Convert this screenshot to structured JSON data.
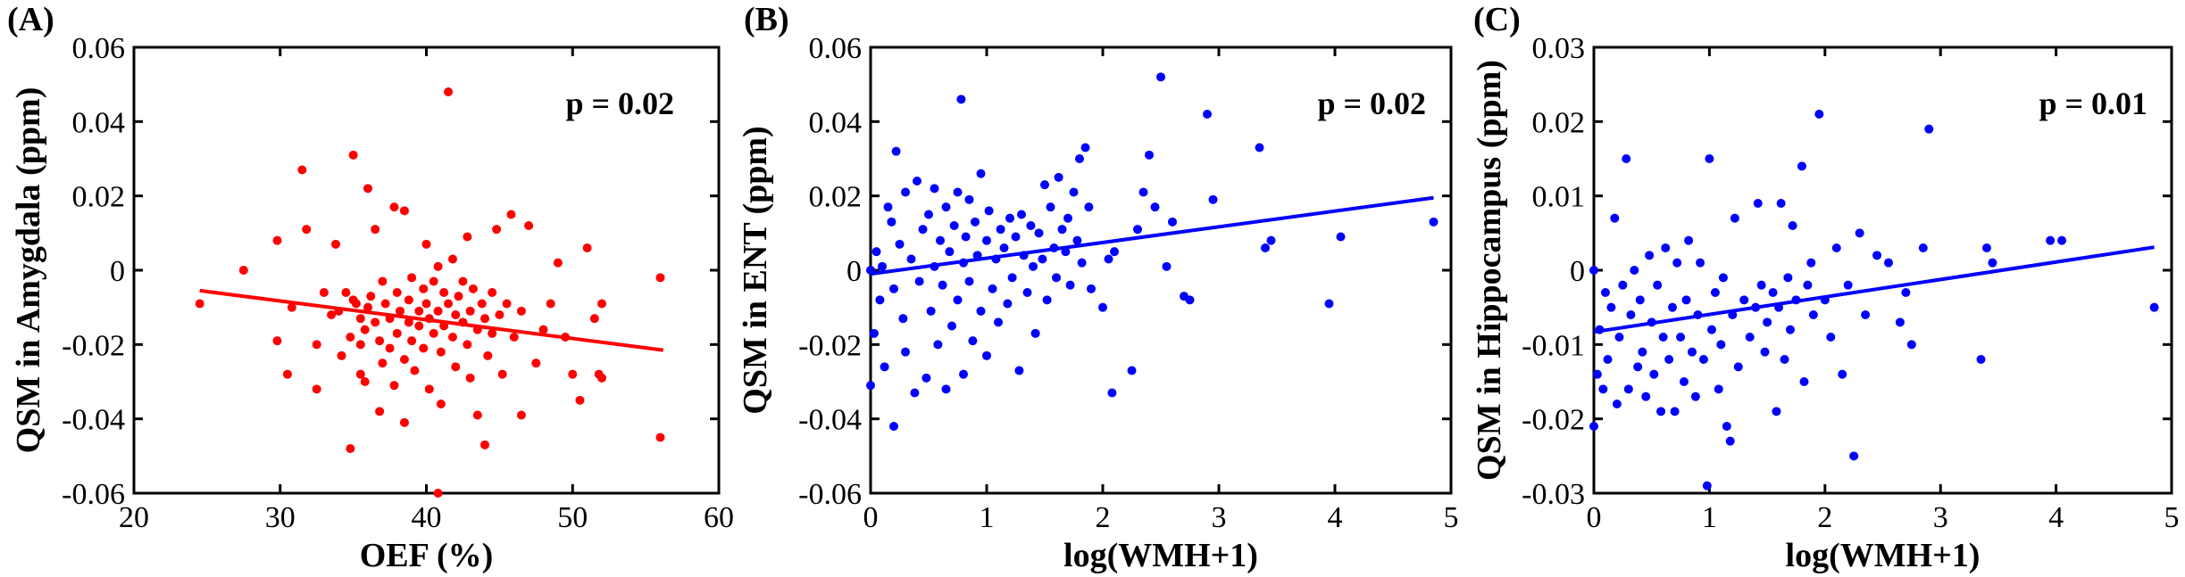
{
  "chart_data": [
    {
      "type": "scatter",
      "panel_label": "(A)",
      "xlabel": "OEF (%)",
      "ylabel": "QSM in Amygdala (ppm)",
      "xlim": [
        20,
        60
      ],
      "ylim": [
        -0.06,
        0.06
      ],
      "xticks": [
        "20",
        "30",
        "40",
        "50",
        "60"
      ],
      "yticks": [
        "-0.06",
        "-0.04",
        "-0.02",
        "0",
        "0.02",
        "0.04",
        "0.06"
      ],
      "annotation": "p = 0.02",
      "point_color": "#ff0000",
      "line_color": "#ff0000",
      "fit_line": {
        "x": [
          24.5,
          56.2
        ],
        "y": [
          -0.0055,
          -0.0215
        ]
      },
      "points": [
        [
          24.5,
          -0.009
        ],
        [
          27.5,
          0.0
        ],
        [
          29.8,
          -0.019
        ],
        [
          30.5,
          -0.028
        ],
        [
          30.8,
          -0.01
        ],
        [
          31.5,
          0.027
        ],
        [
          31.8,
          0.011
        ],
        [
          32.5,
          -0.02
        ],
        [
          32.5,
          -0.032
        ],
        [
          33.0,
          -0.006
        ],
        [
          33.5,
          -0.012
        ],
        [
          33.8,
          0.007
        ],
        [
          34.0,
          -0.011
        ],
        [
          34.2,
          -0.023
        ],
        [
          34.5,
          -0.006
        ],
        [
          34.8,
          -0.018
        ],
        [
          35.0,
          -0.008
        ],
        [
          35.0,
          0.031
        ],
        [
          35.2,
          -0.009
        ],
        [
          35.5,
          -0.013
        ],
        [
          35.5,
          -0.02
        ],
        [
          35.5,
          -0.028
        ],
        [
          35.8,
          -0.016
        ],
        [
          35.8,
          -0.03
        ],
        [
          36.0,
          -0.01
        ],
        [
          36.0,
          0.022
        ],
        [
          36.2,
          -0.007
        ],
        [
          36.5,
          -0.014
        ],
        [
          36.5,
          0.011
        ],
        [
          36.8,
          -0.019
        ],
        [
          36.8,
          -0.038
        ],
        [
          37.0,
          -0.025
        ],
        [
          37.0,
          -0.003
        ],
        [
          37.2,
          -0.009
        ],
        [
          37.5,
          -0.013
        ],
        [
          37.5,
          -0.021
        ],
        [
          37.8,
          0.017
        ],
        [
          37.8,
          -0.031
        ],
        [
          38.0,
          -0.006
        ],
        [
          38.0,
          -0.017
        ],
        [
          38.2,
          -0.011
        ],
        [
          38.5,
          -0.024
        ],
        [
          38.5,
          0.016
        ],
        [
          38.5,
          -0.041
        ],
        [
          38.8,
          -0.014
        ],
        [
          38.8,
          -0.008
        ],
        [
          39.0,
          -0.002
        ],
        [
          39.0,
          -0.019
        ],
        [
          39.2,
          -0.027
        ],
        [
          39.5,
          -0.011
        ],
        [
          39.5,
          -0.015
        ],
        [
          39.8,
          -0.005
        ],
        [
          39.8,
          -0.021
        ],
        [
          40.0,
          -0.009
        ],
        [
          40.0,
          0.007
        ],
        [
          40.2,
          -0.013
        ],
        [
          40.2,
          -0.032
        ],
        [
          40.5,
          -0.017
        ],
        [
          40.5,
          -0.003
        ],
        [
          40.8,
          0.001
        ],
        [
          40.8,
          -0.011
        ],
        [
          41.0,
          -0.022
        ],
        [
          41.0,
          -0.036
        ],
        [
          41.2,
          -0.006
        ],
        [
          41.2,
          -0.015
        ],
        [
          41.5,
          0.048
        ],
        [
          41.5,
          -0.009
        ],
        [
          41.8,
          -0.018
        ],
        [
          41.8,
          0.003
        ],
        [
          42.0,
          -0.012
        ],
        [
          42.0,
          -0.026
        ],
        [
          42.2,
          -0.007
        ],
        [
          42.5,
          -0.014
        ],
        [
          42.5,
          -0.003
        ],
        [
          42.8,
          0.009
        ],
        [
          42.8,
          -0.02
        ],
        [
          43.0,
          -0.011
        ],
        [
          43.0,
          -0.029
        ],
        [
          43.2,
          -0.005
        ],
        [
          43.5,
          -0.016
        ],
        [
          43.5,
          -0.039
        ],
        [
          43.8,
          -0.009
        ],
        [
          44.0,
          -0.013
        ],
        [
          44.0,
          -0.047
        ],
        [
          44.2,
          -0.023
        ],
        [
          44.5,
          -0.006
        ],
        [
          44.5,
          -0.017
        ],
        [
          44.8,
          0.011
        ],
        [
          45.0,
          -0.012
        ],
        [
          45.2,
          -0.028
        ],
        [
          45.5,
          -0.009
        ],
        [
          45.8,
          0.015
        ],
        [
          46.0,
          -0.018
        ],
        [
          46.5,
          -0.011
        ],
        [
          46.5,
          -0.039
        ],
        [
          47.0,
          0.012
        ],
        [
          47.5,
          -0.025
        ],
        [
          48.0,
          -0.016
        ],
        [
          48.5,
          -0.009
        ],
        [
          49.0,
          0.002
        ],
        [
          49.5,
          -0.018
        ],
        [
          50.0,
          -0.028
        ],
        [
          50.5,
          -0.035
        ],
        [
          51.0,
          0.006
        ],
        [
          51.5,
          -0.013
        ],
        [
          51.8,
          -0.028
        ],
        [
          52.0,
          -0.009
        ],
        [
          52.0,
          -0.029
        ],
        [
          56.0,
          -0.002
        ],
        [
          56.0,
          -0.045
        ],
        [
          40.8,
          -0.06
        ],
        [
          34.8,
          -0.048
        ],
        [
          29.8,
          0.008
        ]
      ]
    },
    {
      "type": "scatter",
      "panel_label": "(B)",
      "xlabel": "log(WMH+1)",
      "ylabel": "QSM in ENT (ppm)",
      "xlim": [
        0,
        5
      ],
      "ylim": [
        -0.06,
        0.06
      ],
      "xticks": [
        "0",
        "1",
        "2",
        "3",
        "4",
        "5"
      ],
      "yticks": [
        "-0.06",
        "-0.04",
        "-0.02",
        "0",
        "0.02",
        "0.04",
        "0.06"
      ],
      "annotation": "p = 0.02",
      "point_color": "#0000ff",
      "line_color": "#0000ff",
      "fit_line": {
        "x": [
          0.0,
          4.85
        ],
        "y": [
          -0.001,
          0.0195
        ]
      },
      "points": [
        [
          0.0,
          0.0
        ],
        [
          0.0,
          -0.031
        ],
        [
          0.03,
          -0.017
        ],
        [
          0.05,
          0.005
        ],
        [
          0.08,
          -0.008
        ],
        [
          0.1,
          0.001
        ],
        [
          0.12,
          -0.026
        ],
        [
          0.15,
          0.017
        ],
        [
          0.18,
          0.013
        ],
        [
          0.2,
          -0.005
        ],
        [
          0.2,
          -0.042
        ],
        [
          0.22,
          0.032
        ],
        [
          0.25,
          0.007
        ],
        [
          0.28,
          -0.013
        ],
        [
          0.3,
          0.021
        ],
        [
          0.3,
          -0.022
        ],
        [
          0.35,
          0.003
        ],
        [
          0.38,
          -0.033
        ],
        [
          0.4,
          0.024
        ],
        [
          0.42,
          -0.003
        ],
        [
          0.45,
          0.011
        ],
        [
          0.48,
          -0.029
        ],
        [
          0.5,
          0.015
        ],
        [
          0.52,
          -0.011
        ],
        [
          0.55,
          0.001
        ],
        [
          0.55,
          0.022
        ],
        [
          0.58,
          -0.02
        ],
        [
          0.6,
          0.008
        ],
        [
          0.62,
          -0.004
        ],
        [
          0.65,
          0.017
        ],
        [
          0.65,
          -0.032
        ],
        [
          0.68,
          0.005
        ],
        [
          0.7,
          -0.015
        ],
        [
          0.72,
          0.012
        ],
        [
          0.75,
          0.021
        ],
        [
          0.75,
          -0.008
        ],
        [
          0.78,
          0.046
        ],
        [
          0.8,
          0.002
        ],
        [
          0.8,
          -0.028
        ],
        [
          0.82,
          0.009
        ],
        [
          0.85,
          -0.003
        ],
        [
          0.85,
          0.019
        ],
        [
          0.88,
          -0.019
        ],
        [
          0.9,
          0.013
        ],
        [
          0.92,
          0.004
        ],
        [
          0.95,
          -0.011
        ],
        [
          0.95,
          0.026
        ],
        [
          1.0,
          0.008
        ],
        [
          1.0,
          -0.023
        ],
        [
          1.02,
          0.016
        ],
        [
          1.05,
          -0.005
        ],
        [
          1.08,
          0.003
        ],
        [
          1.1,
          -0.014
        ],
        [
          1.12,
          0.011
        ],
        [
          1.15,
          0.006
        ],
        [
          1.18,
          -0.009
        ],
        [
          1.2,
          0.014
        ],
        [
          1.22,
          -0.002
        ],
        [
          1.25,
          0.009
        ],
        [
          1.28,
          -0.027
        ],
        [
          1.3,
          0.015
        ],
        [
          1.32,
          0.004
        ],
        [
          1.35,
          -0.006
        ],
        [
          1.38,
          0.012
        ],
        [
          1.4,
          0.001
        ],
        [
          1.42,
          -0.017
        ],
        [
          1.45,
          0.01
        ],
        [
          1.48,
          0.003
        ],
        [
          1.5,
          0.023
        ],
        [
          1.52,
          -0.008
        ],
        [
          1.55,
          0.017
        ],
        [
          1.58,
          0.006
        ],
        [
          1.6,
          -0.002
        ],
        [
          1.62,
          0.025
        ],
        [
          1.65,
          0.011
        ],
        [
          1.68,
          0.005
        ],
        [
          1.7,
          0.014
        ],
        [
          1.72,
          -0.004
        ],
        [
          1.75,
          0.021
        ],
        [
          1.78,
          0.008
        ],
        [
          1.8,
          0.03
        ],
        [
          1.82,
          0.002
        ],
        [
          1.85,
          0.033
        ],
        [
          1.88,
          0.017
        ],
        [
          1.9,
          -0.005
        ],
        [
          2.0,
          -0.01
        ],
        [
          2.05,
          0.003
        ],
        [
          2.08,
          -0.033
        ],
        [
          2.1,
          0.005
        ],
        [
          2.25,
          -0.027
        ],
        [
          2.3,
          0.011
        ],
        [
          2.35,
          0.021
        ],
        [
          2.4,
          0.031
        ],
        [
          2.45,
          0.017
        ],
        [
          2.5,
          0.052
        ],
        [
          2.55,
          0.001
        ],
        [
          2.6,
          0.013
        ],
        [
          2.7,
          -0.007
        ],
        [
          2.75,
          -0.008
        ],
        [
          2.9,
          0.042
        ],
        [
          2.95,
          0.019
        ],
        [
          3.35,
          0.033
        ],
        [
          3.4,
          0.006
        ],
        [
          3.45,
          0.008
        ],
        [
          3.95,
          -0.009
        ],
        [
          4.05,
          0.009
        ],
        [
          4.85,
          0.013
        ]
      ]
    },
    {
      "type": "scatter",
      "panel_label": "(C)",
      "xlabel": "log(WMH+1)",
      "ylabel": "QSM in Hippocampus (ppm)",
      "xlim": [
        0,
        5
      ],
      "ylim": [
        -0.03,
        0.03
      ],
      "xticks": [
        "0",
        "1",
        "2",
        "3",
        "4",
        "5"
      ],
      "yticks": [
        "-0.03",
        "-0.02",
        "-0.01",
        "0",
        "0.01",
        "0.02",
        "0.03"
      ],
      "annotation": "p = 0.01",
      "point_color": "#0000ff",
      "line_color": "#0000ff",
      "fit_line": {
        "x": [
          0.0,
          4.85
        ],
        "y": [
          -0.0083,
          0.0031
        ]
      },
      "points": [
        [
          0.0,
          0.0
        ],
        [
          0.0,
          -0.021
        ],
        [
          0.03,
          -0.014
        ],
        [
          0.05,
          -0.008
        ],
        [
          0.08,
          -0.016
        ],
        [
          0.1,
          -0.003
        ],
        [
          0.12,
          -0.012
        ],
        [
          0.15,
          -0.005
        ],
        [
          0.18,
          0.007
        ],
        [
          0.2,
          -0.018
        ],
        [
          0.22,
          -0.009
        ],
        [
          0.25,
          -0.002
        ],
        [
          0.28,
          0.015
        ],
        [
          0.3,
          -0.016
        ],
        [
          0.32,
          -0.006
        ],
        [
          0.35,
          0.0
        ],
        [
          0.38,
          -0.013
        ],
        [
          0.4,
          -0.004
        ],
        [
          0.42,
          -0.011
        ],
        [
          0.45,
          -0.017
        ],
        [
          0.48,
          0.002
        ],
        [
          0.5,
          -0.007
        ],
        [
          0.52,
          -0.014
        ],
        [
          0.55,
          -0.002
        ],
        [
          0.58,
          -0.019
        ],
        [
          0.6,
          -0.009
        ],
        [
          0.62,
          0.003
        ],
        [
          0.65,
          -0.012
        ],
        [
          0.68,
          -0.005
        ],
        [
          0.7,
          -0.019
        ],
        [
          0.72,
          0.001
        ],
        [
          0.75,
          -0.009
        ],
        [
          0.78,
          -0.015
        ],
        [
          0.8,
          -0.004
        ],
        [
          0.82,
          0.004
        ],
        [
          0.85,
          -0.011
        ],
        [
          0.88,
          -0.017
        ],
        [
          0.9,
          -0.006
        ],
        [
          0.92,
          0.001
        ],
        [
          0.95,
          -0.012
        ],
        [
          0.98,
          -0.029
        ],
        [
          1.0,
          0.015
        ],
        [
          1.02,
          -0.008
        ],
        [
          1.05,
          -0.003
        ],
        [
          1.08,
          -0.016
        ],
        [
          1.1,
          -0.01
        ],
        [
          1.12,
          -0.001
        ],
        [
          1.15,
          -0.021
        ],
        [
          1.18,
          -0.023
        ],
        [
          1.2,
          -0.006
        ],
        [
          1.22,
          0.007
        ],
        [
          1.25,
          -0.013
        ],
        [
          1.3,
          -0.004
        ],
        [
          1.35,
          -0.009
        ],
        [
          1.4,
          -0.005
        ],
        [
          1.42,
          0.009
        ],
        [
          1.45,
          -0.002
        ],
        [
          1.48,
          -0.011
        ],
        [
          1.5,
          -0.007
        ],
        [
          1.55,
          -0.003
        ],
        [
          1.58,
          -0.019
        ],
        [
          1.6,
          -0.005
        ],
        [
          1.62,
          0.009
        ],
        [
          1.65,
          -0.012
        ],
        [
          1.68,
          -0.001
        ],
        [
          1.7,
          -0.008
        ],
        [
          1.72,
          0.006
        ],
        [
          1.75,
          -0.004
        ],
        [
          1.8,
          0.014
        ],
        [
          1.82,
          -0.015
        ],
        [
          1.85,
          -0.002
        ],
        [
          1.88,
          0.001
        ],
        [
          1.9,
          -0.006
        ],
        [
          1.95,
          0.021
        ],
        [
          2.0,
          -0.004
        ],
        [
          2.05,
          -0.009
        ],
        [
          2.1,
          0.003
        ],
        [
          2.15,
          -0.014
        ],
        [
          2.2,
          -0.002
        ],
        [
          2.25,
          -0.025
        ],
        [
          2.3,
          0.005
        ],
        [
          2.35,
          -0.006
        ],
        [
          2.45,
          0.002
        ],
        [
          2.55,
          0.001
        ],
        [
          2.65,
          -0.007
        ],
        [
          2.7,
          -0.003
        ],
        [
          2.75,
          -0.01
        ],
        [
          2.85,
          0.003
        ],
        [
          2.9,
          0.019
        ],
        [
          3.35,
          -0.012
        ],
        [
          3.4,
          0.003
        ],
        [
          3.45,
          0.001
        ],
        [
          3.95,
          0.004
        ],
        [
          4.05,
          0.004
        ],
        [
          4.85,
          -0.005
        ]
      ]
    }
  ]
}
